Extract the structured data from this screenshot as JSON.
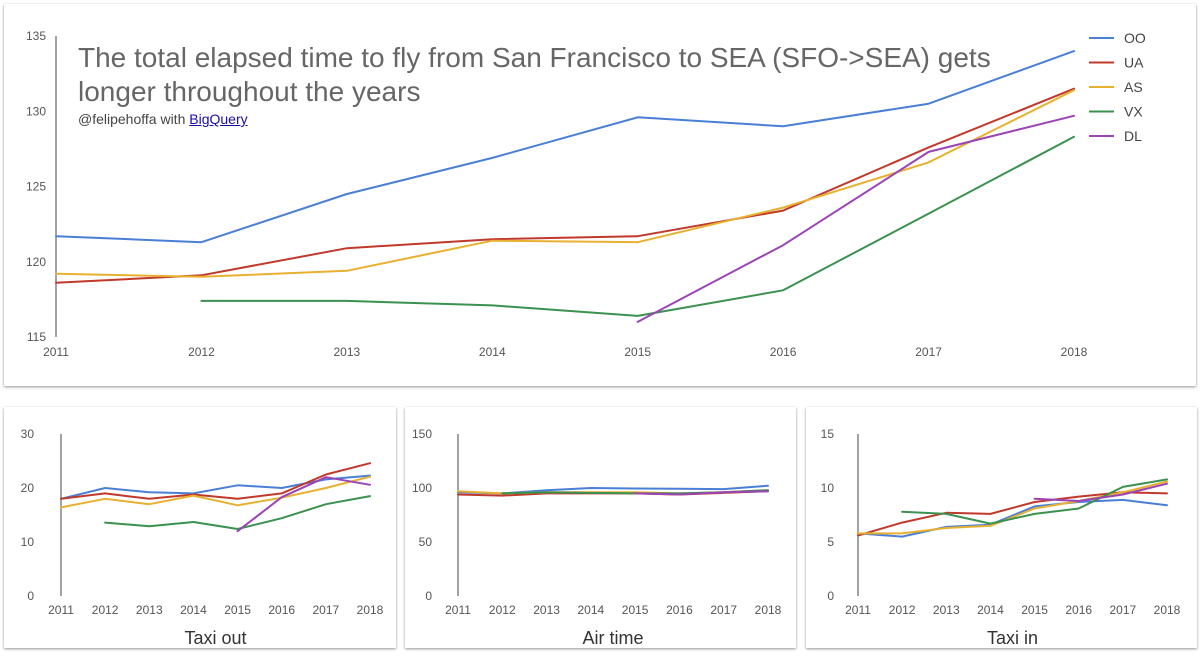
{
  "header": {
    "title": "The total elapsed time to fly from San Francisco to SEA (SFO->SEA) gets longer throughout the years",
    "subtitle_prefix": "@felipehoffa with ",
    "subtitle_link": "BigQuery"
  },
  "colors": {
    "OO": "#4a7fd6",
    "UA": "#c0392b",
    "AS": "#e8b030",
    "VX": "#3a9150",
    "DL": "#9b44b5"
  },
  "chart_data": [
    {
      "id": "main",
      "type": "line",
      "title": "The total elapsed time to fly from San Francisco to SEA (SFO->SEA) gets longer throughout the years",
      "xlabel": "",
      "ylabel": "",
      "x": [
        2011,
        2012,
        2013,
        2014,
        2015,
        2016,
        2017,
        2018
      ],
      "ylim": [
        115,
        135
      ],
      "yticks": [
        115,
        120,
        125,
        130,
        135
      ],
      "legend": "right",
      "series": [
        {
          "name": "OO",
          "values": [
            121.7,
            121.3,
            124.5,
            126.9,
            129.6,
            129.0,
            130.5,
            134.0
          ]
        },
        {
          "name": "UA",
          "values": [
            118.6,
            119.1,
            120.9,
            121.5,
            121.7,
            123.4,
            127.6,
            131.5
          ]
        },
        {
          "name": "AS",
          "values": [
            119.2,
            119.0,
            119.4,
            121.4,
            121.3,
            123.6,
            126.6,
            131.4
          ]
        },
        {
          "name": "VX",
          "values": [
            null,
            117.4,
            117.4,
            117.1,
            116.4,
            118.1,
            123.2,
            128.3
          ]
        },
        {
          "name": "DL",
          "values": [
            null,
            null,
            null,
            null,
            116.0,
            121.1,
            127.3,
            129.7
          ]
        }
      ]
    },
    {
      "id": "taxi-out",
      "type": "line",
      "title": "",
      "xlabel": "Taxi out",
      "ylabel": "",
      "x": [
        2011,
        2012,
        2013,
        2014,
        2015,
        2016,
        2017,
        2018
      ],
      "ylim": [
        0,
        30
      ],
      "yticks": [
        0,
        10,
        20,
        30
      ],
      "series": [
        {
          "name": "OO",
          "values": [
            18.0,
            20.0,
            19.2,
            19.0,
            20.5,
            20.0,
            21.6,
            22.3
          ]
        },
        {
          "name": "UA",
          "values": [
            18.0,
            19.0,
            18.0,
            18.8,
            18.0,
            19.0,
            22.5,
            24.6
          ]
        },
        {
          "name": "AS",
          "values": [
            16.4,
            18.0,
            17.0,
            18.6,
            16.8,
            18.2,
            20.0,
            22.1
          ]
        },
        {
          "name": "VX",
          "values": [
            null,
            13.6,
            12.9,
            13.7,
            12.4,
            14.4,
            17.0,
            18.5
          ]
        },
        {
          "name": "DL",
          "values": [
            null,
            null,
            null,
            null,
            12.0,
            18.3,
            22.0,
            20.6
          ]
        }
      ]
    },
    {
      "id": "air-time",
      "type": "line",
      "title": "",
      "xlabel": "Air time",
      "ylabel": "",
      "x": [
        2011,
        2012,
        2013,
        2014,
        2015,
        2016,
        2017,
        2018
      ],
      "ylim": [
        0,
        150
      ],
      "yticks": [
        0,
        50,
        100,
        150
      ],
      "series": [
        {
          "name": "OO",
          "values": [
            96,
            95,
            98,
            100,
            99.5,
            99.3,
            99,
            102
          ]
        },
        {
          "name": "UA",
          "values": [
            94,
            93,
            95,
            95,
            95,
            94,
            95.5,
            97
          ]
        },
        {
          "name": "AS",
          "values": [
            97,
            95,
            96,
            96,
            96,
            95,
            96,
            98
          ]
        },
        {
          "name": "VX",
          "values": [
            null,
            95,
            96,
            95.5,
            95,
            95,
            96,
            98
          ]
        },
        {
          "name": "DL",
          "values": [
            null,
            null,
            null,
            null,
            95,
            94,
            96,
            97
          ]
        }
      ]
    },
    {
      "id": "taxi-in",
      "type": "line",
      "title": "",
      "xlabel": "Taxi in",
      "ylabel": "",
      "x": [
        2011,
        2012,
        2013,
        2014,
        2015,
        2016,
        2017,
        2018
      ],
      "ylim": [
        0,
        15
      ],
      "yticks": [
        0,
        5,
        10,
        15
      ],
      "series": [
        {
          "name": "OO",
          "values": [
            5.8,
            5.5,
            6.4,
            6.6,
            8.3,
            8.7,
            8.9,
            8.4
          ]
        },
        {
          "name": "UA",
          "values": [
            5.6,
            6.8,
            7.7,
            7.6,
            8.7,
            9.2,
            9.6,
            9.5
          ]
        },
        {
          "name": "AS",
          "values": [
            5.8,
            5.8,
            6.3,
            6.5,
            8.1,
            8.8,
            9.6,
            10.6
          ]
        },
        {
          "name": "VX",
          "values": [
            null,
            7.8,
            7.6,
            6.7,
            7.6,
            8.1,
            10.1,
            10.8
          ]
        },
        {
          "name": "DL",
          "values": [
            null,
            null,
            null,
            null,
            9.0,
            8.8,
            9.4,
            10.4
          ]
        }
      ]
    }
  ]
}
